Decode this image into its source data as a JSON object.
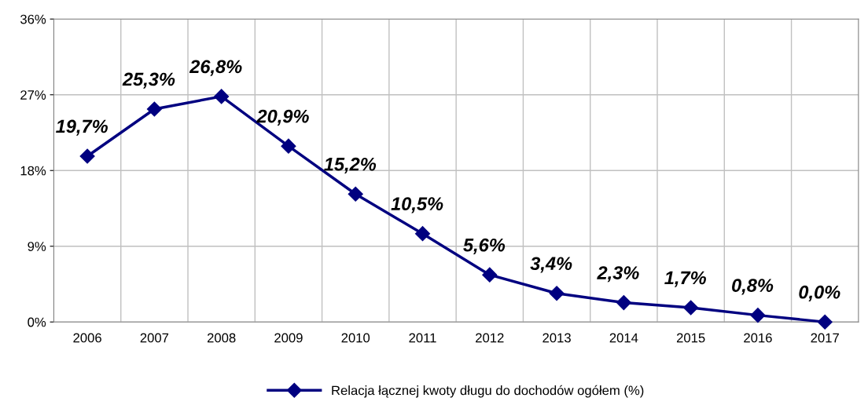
{
  "chart_data": {
    "type": "line",
    "categories": [
      "2006",
      "2007",
      "2008",
      "2009",
      "2010",
      "2011",
      "2012",
      "2013",
      "2014",
      "2015",
      "2016",
      "2017"
    ],
    "series": [
      {
        "name": "Relacja łącznej kwoty długu do dochodów ogółem (%)",
        "color": "#000080",
        "values": [
          19.7,
          25.3,
          26.8,
          20.9,
          15.2,
          10.5,
          5.6,
          3.4,
          2.3,
          1.7,
          0.8,
          0.0
        ],
        "value_labels": [
          "19,7%",
          "25,3%",
          "26,8%",
          "20,9%",
          "15,2%",
          "10,5%",
          "5,6%",
          "3,4%",
          "2,3%",
          "1,7%",
          "0,8%",
          "0,0%"
        ]
      }
    ],
    "ylim": [
      0,
      36
    ],
    "yticks": [
      {
        "value": 0,
        "label": "0%"
      },
      {
        "value": 9,
        "label": "9%"
      },
      {
        "value": 18,
        "label": "18%"
      },
      {
        "value": 27,
        "label": "27%"
      },
      {
        "value": 36,
        "label": "36%"
      }
    ],
    "grid": true,
    "legend": "bottom",
    "marker": "diamond",
    "line_style": "solid"
  }
}
